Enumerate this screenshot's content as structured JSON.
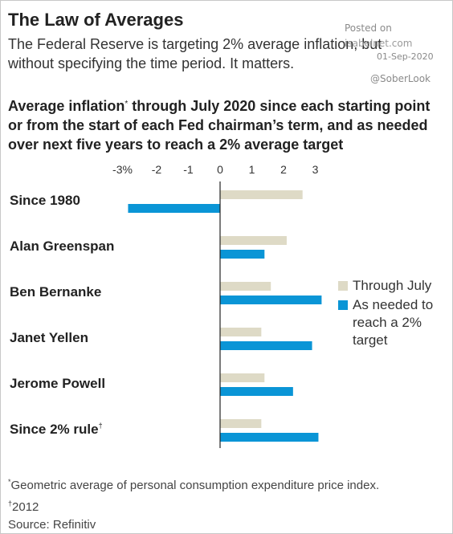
{
  "title": "The Law of Averages",
  "subtitle": "The Federal Reserve is targeting 2% average inflation, but without specifying the time period. It matters.",
  "watermark": {
    "posted_on": "Posted on",
    "site": "isabelnet.com",
    "date": "01-Sep-2020",
    "handle": "@SoberLook"
  },
  "chart_title": {
    "part1": "Average inflation",
    "mark": "*",
    "part2": " through July 2020 since each starting point or from the start of each Fed chairman’s term, and as needed over next five years to reach a 2% average target"
  },
  "colors": {
    "through_july": "#dedac6",
    "as_needed": "#0a95d6",
    "axis": "#222222"
  },
  "chart_data": {
    "type": "bar",
    "orientation": "horizontal",
    "categories": [
      "Since 1980",
      "Alan Greenspan",
      "Ben Bernanke",
      "Janet Yellen",
      "Jerome Powell",
      "Since 2% rule"
    ],
    "category_marks": [
      "",
      "",
      "",
      "",
      "",
      "†"
    ],
    "series": [
      {
        "name": "Through July",
        "values": [
          2.6,
          2.1,
          1.6,
          1.3,
          1.4,
          1.3
        ]
      },
      {
        "name": "As needed to reach a 2% target",
        "values": [
          -2.9,
          1.4,
          3.2,
          2.9,
          2.3,
          3.1
        ]
      }
    ],
    "xlim": [
      -3.3,
      3.3
    ],
    "ticks": [
      -3,
      -2,
      -1,
      0,
      1,
      2,
      3
    ],
    "tick_labels": [
      "-3%",
      "-2",
      "-1",
      "0",
      "1",
      "2",
      "3"
    ],
    "legend_position": "right"
  },
  "legend": {
    "through_july": "Through July",
    "as_needed_lines": [
      "As needed to",
      "reach a 2%",
      "target"
    ]
  },
  "footnotes": {
    "star_mark": "*",
    "star_text": "Geometric average of personal consumption expenditure price index.",
    "dagger_mark": "†",
    "dagger_text": "2012",
    "source": "Source: Refinitiv"
  }
}
